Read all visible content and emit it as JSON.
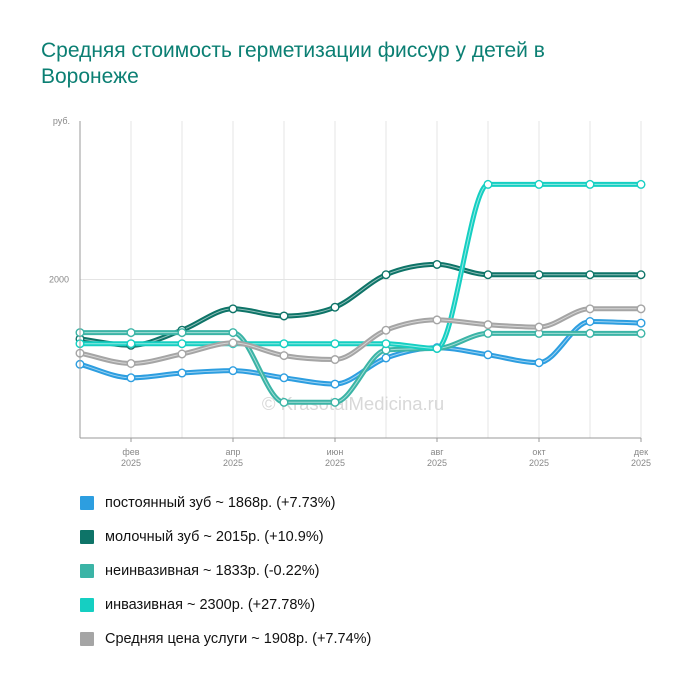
{
  "title": "Средняя стоимость герметизации фиссур у детей в Воронеже",
  "watermark": "© KrasotaiMedicina.ru",
  "chart_data": {
    "type": "line",
    "title": "Средняя стоимость герметизации фиссур у детей в Воронеже",
    "ylabel": "руб.",
    "ylim": [
      1000,
      3000
    ],
    "y_ticks": [
      {
        "value": 2000,
        "label": "2000"
      }
    ],
    "x_count": 12,
    "x_ticks": [
      {
        "index": 1,
        "month": "фев",
        "year": "2025"
      },
      {
        "index": 3,
        "month": "апр",
        "year": "2025"
      },
      {
        "index": 5,
        "month": "июн",
        "year": "2025"
      },
      {
        "index": 7,
        "month": "авг",
        "year": "2025"
      },
      {
        "index": 9,
        "month": "окт",
        "year": "2025"
      },
      {
        "index": 11,
        "month": "дек",
        "year": "2025"
      }
    ],
    "grid": true,
    "series": [
      {
        "name": "постоянный зуб",
        "color": "#2d9ee0",
        "legend": "постоянный зуб ~ 1868р. (+7.73%)",
        "values": [
          1465,
          1380,
          1410,
          1425,
          1380,
          1340,
          1505,
          1570,
          1525,
          1475,
          1735,
          1725
        ]
      },
      {
        "name": "молочный зуб",
        "color": "#0e7468",
        "legend": "молочный зуб ~ 2015р. (+10.9%)",
        "values": [
          1625,
          1585,
          1680,
          1815,
          1770,
          1825,
          2030,
          2095,
          2030,
          2030,
          2030,
          2030
        ]
      },
      {
        "name": "неинвазивная",
        "color": "#3bb4a6",
        "legend": "неинвазивная ~ 1833р. (-0.22%)",
        "values": [
          1665,
          1665,
          1665,
          1665,
          1225,
          1225,
          1555,
          1565,
          1660,
          1660,
          1660,
          1660
        ]
      },
      {
        "name": "инвазивная",
        "color": "#15cfc2",
        "legend": "инвазивная ~ 2300р. (+27.78%)",
        "values": [
          1595,
          1595,
          1595,
          1595,
          1595,
          1595,
          1595,
          1565,
          2600,
          2600,
          2600,
          2600
        ]
      },
      {
        "name": "Средняя цена услуги",
        "color": "#a5a5a5",
        "legend": "Средняя цена услуги ~ 1908р. (+7.74%)",
        "values": [
          1535,
          1470,
          1530,
          1600,
          1520,
          1495,
          1680,
          1745,
          1715,
          1700,
          1815,
          1815
        ]
      }
    ]
  }
}
